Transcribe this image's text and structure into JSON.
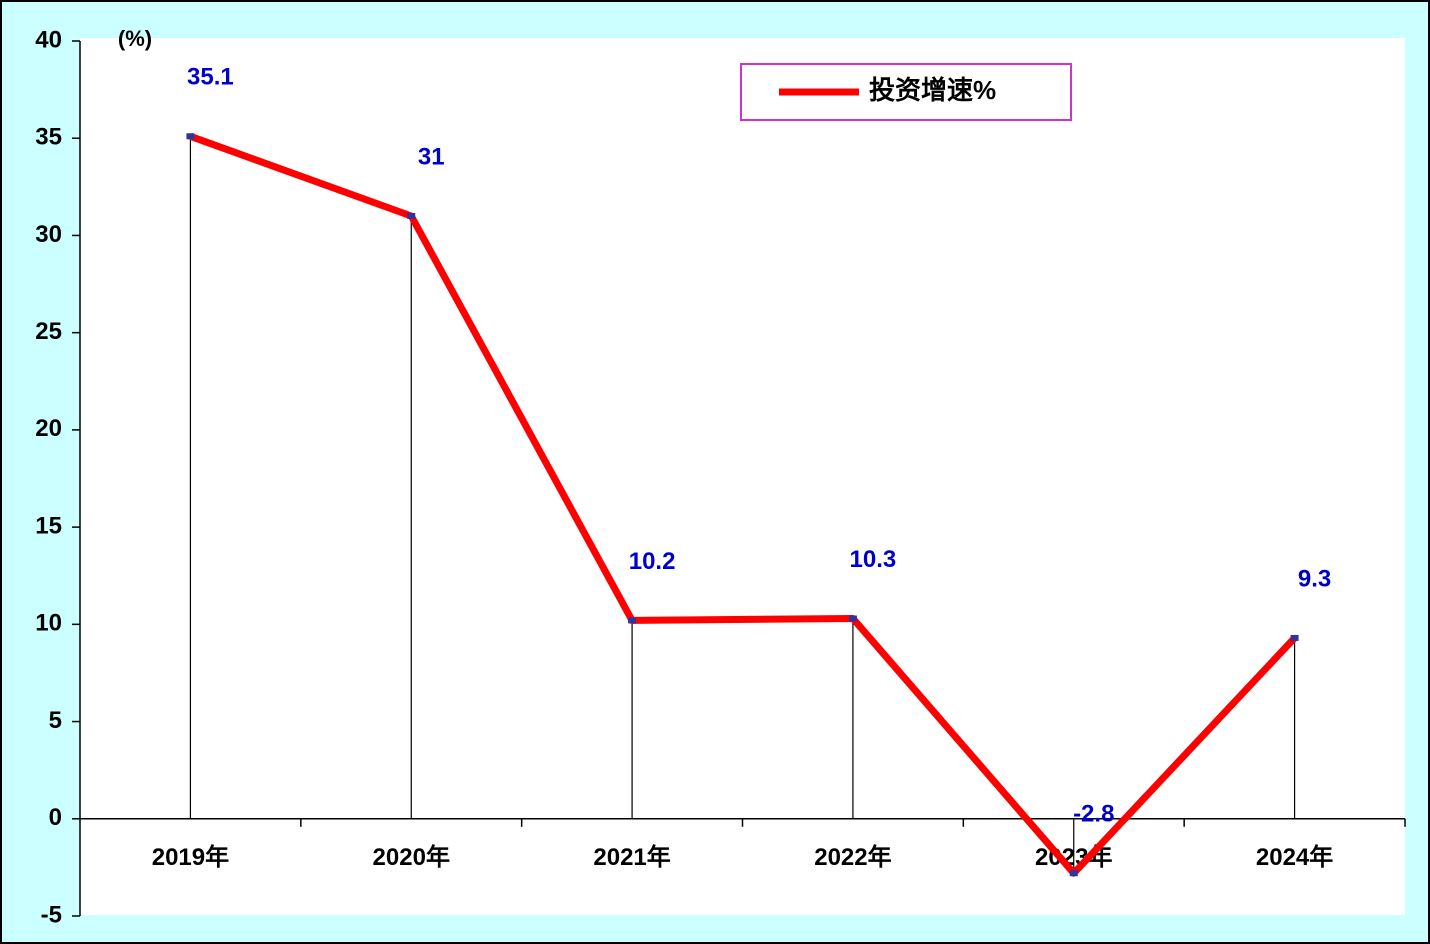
{
  "chart_data": {
    "type": "line",
    "y_unit": "(%)",
    "categories": [
      "2019年",
      "2020年",
      "2021年",
      "2022年",
      "2023年",
      "2024年"
    ],
    "series": [
      {
        "name": "投资增速%",
        "color": "#ff0000",
        "values": [
          35.1,
          31,
          10.2,
          10.3,
          -2.8,
          9.3
        ]
      }
    ],
    "marker_color": "#333399",
    "label_color": "#0000cc",
    "ylim": [
      -5,
      40
    ],
    "yticks": [
      -5,
      0,
      5,
      10,
      15,
      20,
      25,
      30,
      35,
      40
    ],
    "drop_lines": true,
    "legend": "top"
  }
}
